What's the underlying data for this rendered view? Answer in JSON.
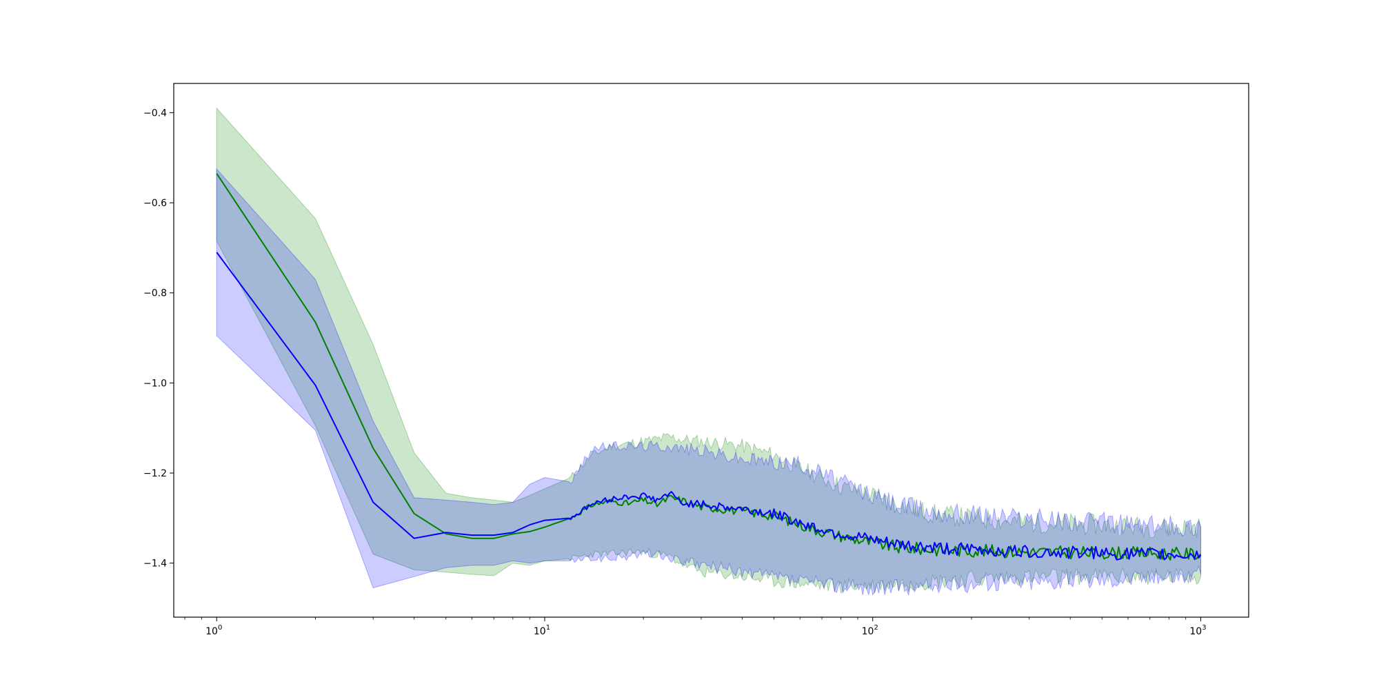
{
  "chart_data": {
    "type": "line",
    "title": "",
    "xlabel": "",
    "ylabel": "",
    "xscale": "log",
    "xlim": [
      0.74,
      1400
    ],
    "ylim": [
      -1.52,
      -0.335
    ],
    "grid": false,
    "legend": "none",
    "x_ticks": [
      {
        "value": 1,
        "label": "10",
        "exp": "0"
      },
      {
        "value": 10,
        "label": "10",
        "exp": "1"
      },
      {
        "value": 100,
        "label": "10",
        "exp": "2"
      },
      {
        "value": 1000,
        "label": "10",
        "exp": "3"
      }
    ],
    "y_ticks": [
      {
        "value": -0.4,
        "label": "−0.4"
      },
      {
        "value": -0.6,
        "label": "−0.6"
      },
      {
        "value": -0.8,
        "label": "−0.8"
      },
      {
        "value": -1.0,
        "label": "−1.0"
      },
      {
        "value": -1.2,
        "label": "−1.2"
      },
      {
        "value": -1.4,
        "label": "−1.4"
      }
    ],
    "series": [
      {
        "color": "#008000",
        "band_color": "#008000",
        "band_opacity": 0.2,
        "x": [
          1,
          2,
          3,
          4,
          5,
          6,
          7,
          8,
          9,
          10,
          12,
          14,
          16,
          18,
          20,
          22,
          24,
          26,
          30,
          35,
          40,
          50,
          60,
          70,
          80,
          100,
          120,
          150,
          200,
          300,
          500,
          700,
          1000
        ],
        "y": [
          -0.535,
          -0.865,
          -1.145,
          -1.29,
          -1.335,
          -1.345,
          -1.345,
          -1.335,
          -1.33,
          -1.32,
          -1.3,
          -1.27,
          -1.262,
          -1.268,
          -1.26,
          -1.27,
          -1.255,
          -1.26,
          -1.275,
          -1.28,
          -1.285,
          -1.295,
          -1.315,
          -1.33,
          -1.34,
          -1.355,
          -1.365,
          -1.37,
          -1.372,
          -1.375,
          -1.377,
          -1.378,
          -1.38
        ],
        "upper": [
          -0.39,
          -0.635,
          -0.915,
          -1.155,
          -1.245,
          -1.255,
          -1.26,
          -1.265,
          -1.25,
          -1.235,
          -1.21,
          -1.16,
          -1.14,
          -1.135,
          -1.13,
          -1.125,
          -1.12,
          -1.125,
          -1.13,
          -1.135,
          -1.14,
          -1.16,
          -1.19,
          -1.21,
          -1.23,
          -1.25,
          -1.27,
          -1.29,
          -1.3,
          -1.31,
          -1.315,
          -1.32,
          -1.32
        ],
        "lower": [
          -0.685,
          -1.095,
          -1.38,
          -1.415,
          -1.42,
          -1.425,
          -1.428,
          -1.4,
          -1.405,
          -1.395,
          -1.39,
          -1.38,
          -1.38,
          -1.375,
          -1.375,
          -1.38,
          -1.385,
          -1.4,
          -1.42,
          -1.425,
          -1.43,
          -1.44,
          -1.445,
          -1.45,
          -1.45,
          -1.45,
          -1.445,
          -1.44,
          -1.435,
          -1.43,
          -1.43,
          -1.43,
          -1.43
        ]
      },
      {
        "color": "#0000ff",
        "band_color": "#0000ff",
        "band_opacity": 0.2,
        "x": [
          1,
          2,
          3,
          4,
          5,
          6,
          7,
          8,
          9,
          10,
          12,
          14,
          16,
          18,
          20,
          22,
          24,
          26,
          30,
          35,
          40,
          50,
          60,
          70,
          80,
          100,
          120,
          150,
          200,
          300,
          500,
          700,
          1000
        ],
        "y": [
          -0.71,
          -1.005,
          -1.265,
          -1.345,
          -1.332,
          -1.338,
          -1.338,
          -1.332,
          -1.315,
          -1.305,
          -1.3,
          -1.268,
          -1.258,
          -1.252,
          -1.25,
          -1.26,
          -1.245,
          -1.265,
          -1.27,
          -1.275,
          -1.28,
          -1.29,
          -1.31,
          -1.325,
          -1.335,
          -1.35,
          -1.36,
          -1.365,
          -1.37,
          -1.375,
          -1.378,
          -1.38,
          -1.382
        ],
        "upper": [
          -0.525,
          -0.77,
          -1.085,
          -1.255,
          -1.26,
          -1.265,
          -1.27,
          -1.265,
          -1.225,
          -1.21,
          -1.22,
          -1.145,
          -1.14,
          -1.14,
          -1.14,
          -1.14,
          -1.14,
          -1.145,
          -1.15,
          -1.16,
          -1.17,
          -1.175,
          -1.18,
          -1.2,
          -1.22,
          -1.25,
          -1.27,
          -1.285,
          -1.29,
          -1.3,
          -1.31,
          -1.315,
          -1.32
        ],
        "lower": [
          -0.895,
          -1.105,
          -1.455,
          -1.43,
          -1.41,
          -1.405,
          -1.405,
          -1.395,
          -1.4,
          -1.395,
          -1.395,
          -1.39,
          -1.39,
          -1.385,
          -1.38,
          -1.38,
          -1.39,
          -1.395,
          -1.405,
          -1.41,
          -1.42,
          -1.43,
          -1.44,
          -1.445,
          -1.45,
          -1.455,
          -1.455,
          -1.45,
          -1.445,
          -1.44,
          -1.435,
          -1.43,
          -1.425
        ]
      }
    ]
  }
}
